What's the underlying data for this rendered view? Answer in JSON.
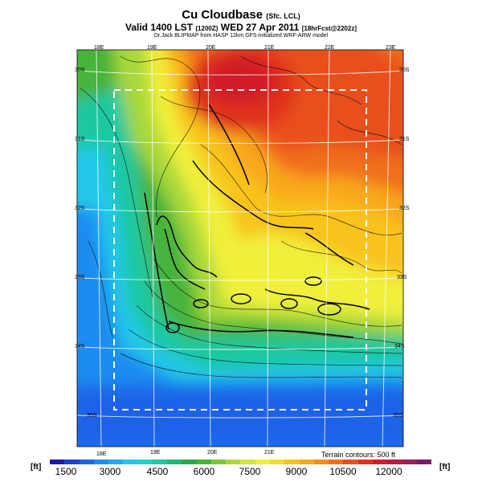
{
  "title": {
    "main": "Cu Cloudbase",
    "main_suffix": "(Sfc. LCL)",
    "valid": "Valid 1400 LST",
    "valid_code": "(1200Z)",
    "date": "WED 27 Apr 2011",
    "forecast": "[18hrFcst@2202z]",
    "credit": "Dr.Jack BLIPMAP from HASP 12km GFS-initialized WRF-ARW model"
  },
  "top_lon_labels": [
    "18E",
    "19E",
    "20E",
    "21E",
    "22E",
    "23E"
  ],
  "bottom_lon_labels": [
    "18E",
    "19E",
    "20E",
    "21E"
  ],
  "left_lat_labels": [
    "30S",
    "31S",
    "32S",
    "33S",
    "34S",
    "35S"
  ],
  "right_lat_labels": [
    "30S",
    "31S",
    "32S",
    "33S",
    "34S",
    "35S"
  ],
  "contour_note": "Terrain contours: 500 ft",
  "unit_left": "[ft]",
  "unit_right": "[ft]",
  "colorbar": {
    "labels": [
      "1500",
      "3000",
      "4500",
      "6000",
      "7500",
      "9000",
      "10500",
      "12000"
    ],
    "colors": [
      "#1a1aa8",
      "#1f3fd0",
      "#1e64e8",
      "#1e8cf0",
      "#22aaf0",
      "#22c8e8",
      "#1fd2c8",
      "#1ec8a0",
      "#1eb878",
      "#2aa84a",
      "#46b43a",
      "#78c83a",
      "#a8d83a",
      "#d2e63a",
      "#f0f03a",
      "#f8dc2a",
      "#f8c41e",
      "#f8a81a",
      "#f88c1a",
      "#f06e1a",
      "#e8501e",
      "#e0321e",
      "#d01e28",
      "#b81e3c",
      "#9c1e5a",
      "#7a1a6a"
    ]
  }
}
